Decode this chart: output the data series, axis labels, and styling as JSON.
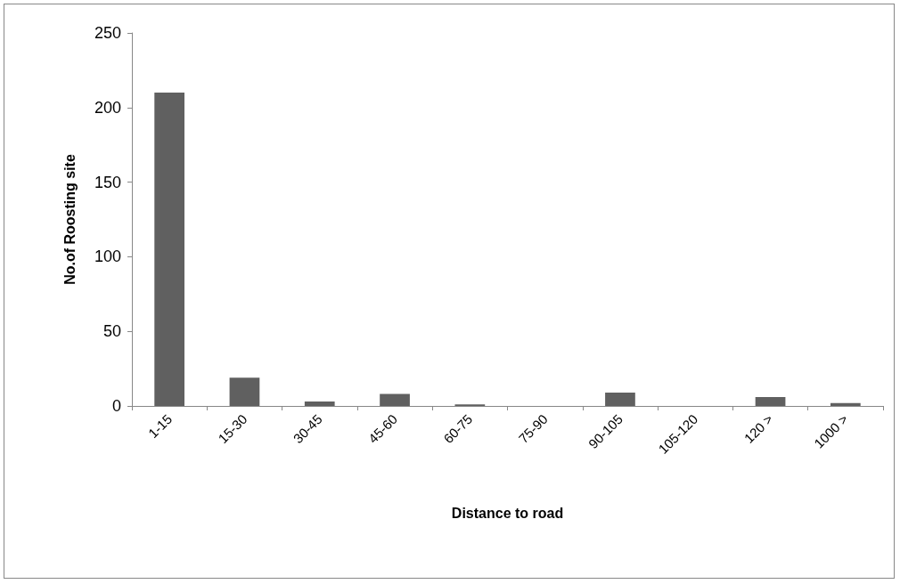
{
  "chart_data": {
    "type": "bar",
    "xlabel": "Distance to road",
    "ylabel": "No.of Roosting site",
    "categories": [
      "1-15",
      "15-30",
      "30-45",
      "45-60",
      "60-75",
      "75-90",
      "90-105",
      "105-120",
      "120 >",
      "1000 >"
    ],
    "values": [
      210,
      19,
      3,
      8,
      1,
      0,
      9,
      0,
      6,
      2
    ],
    "color": "#606060",
    "ylim": [
      0,
      250
    ],
    "yticks": [
      0,
      50,
      100,
      150,
      200,
      250
    ],
    "grid": false
  }
}
